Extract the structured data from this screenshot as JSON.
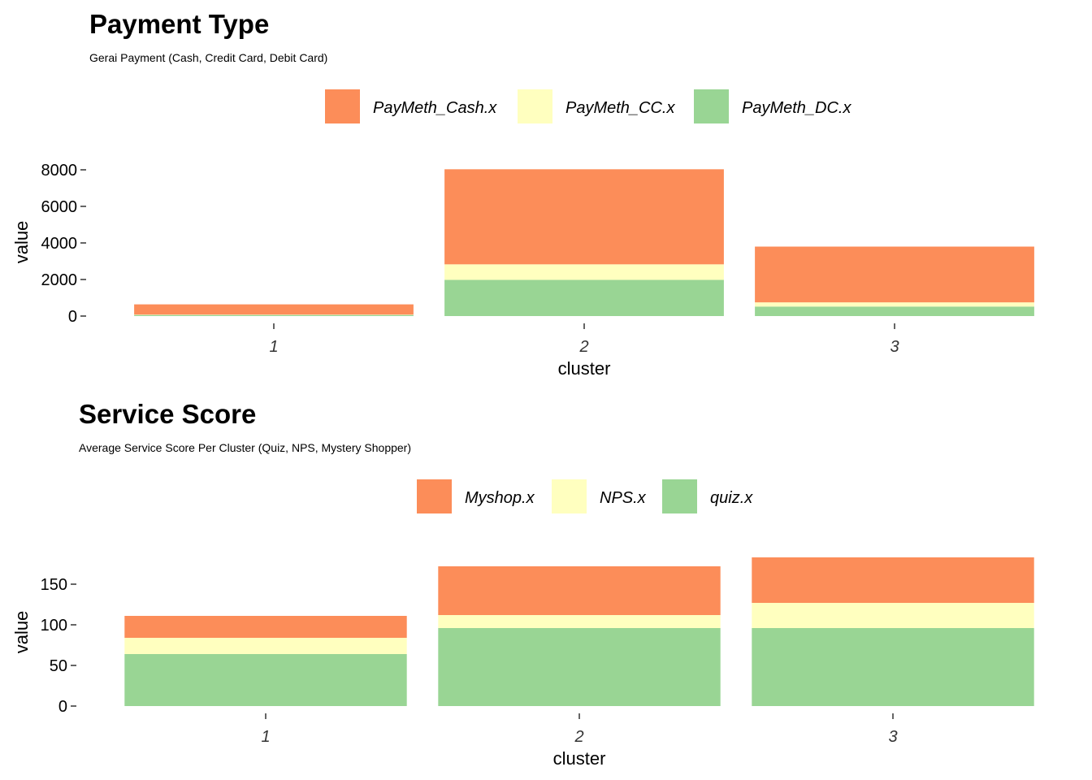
{
  "chart_data": [
    {
      "type": "bar",
      "stacked": true,
      "title": "Payment Type",
      "subtitle": "Gerai Payment (Cash, Credit Card, Debit Card)",
      "xlabel": "cluster",
      "ylabel": "value",
      "categories": [
        "1",
        "2",
        "3"
      ],
      "yticks": [
        "0",
        "2000",
        "4000",
        "6000",
        "8000"
      ],
      "ylim": [
        0,
        8000
      ],
      "legend_position": "top",
      "grid": false,
      "series": [
        {
          "name": "PayMeth_Cash.x",
          "color": "#FC8D59",
          "values": [
            560,
            5200,
            3050
          ]
        },
        {
          "name": "PayMeth_CC.x",
          "color": "#FFFFBF",
          "values": [
            20,
            850,
            230
          ]
        },
        {
          "name": "PayMeth_DC.x",
          "color": "#99D594",
          "values": [
            60,
            1980,
            520
          ]
        }
      ]
    },
    {
      "type": "bar",
      "stacked": true,
      "title": "Service Score",
      "subtitle": "Average Service Score Per Cluster (Quiz, NPS, Mystery Shopper)",
      "xlabel": "cluster",
      "ylabel": "value",
      "categories": [
        "1",
        "2",
        "3"
      ],
      "yticks": [
        "0",
        "50",
        "100",
        "150"
      ],
      "ylim": [
        0,
        180
      ],
      "legend_position": "top",
      "grid": false,
      "series": [
        {
          "name": "Myshop.x",
          "color": "#FC8D59",
          "values": [
            27,
            60,
            56
          ]
        },
        {
          "name": "NPS.x",
          "color": "#FFFFBF",
          "values": [
            20,
            16,
            31
          ]
        },
        {
          "name": "quiz.x",
          "color": "#99D594",
          "values": [
            64,
            96,
            96
          ]
        }
      ]
    }
  ]
}
